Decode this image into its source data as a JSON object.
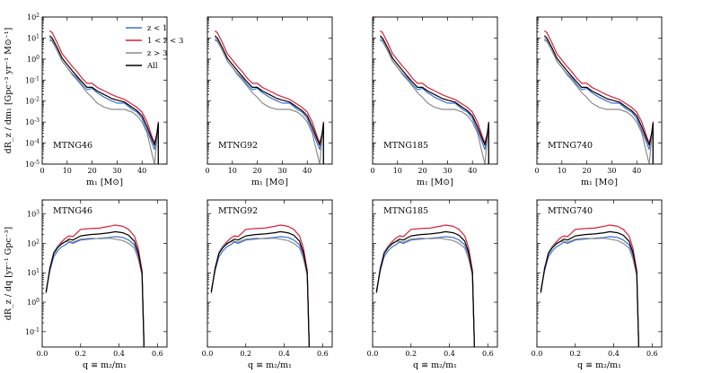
{
  "chart_data": [
    {
      "row": "top",
      "type": "line",
      "yscale": "log",
      "xlim": [
        0,
        50
      ],
      "ylim": [
        1e-05,
        100
      ],
      "xticks": [
        0,
        10,
        20,
        30,
        40
      ],
      "ytick_exponents": [
        -5,
        -4,
        -3,
        -2,
        -1,
        0,
        1,
        2
      ],
      "xlabel": "m₁ [M⊙]",
      "ylabel": "dR_z / dm₁ [Gpc⁻³ yr⁻¹ M⊙⁻¹]",
      "panels": [
        "MTNG46",
        "MTNG92",
        "MTNG185",
        "MTNG740"
      ],
      "legend": [
        "z < 1",
        "1 < z < 3",
        "z > 3",
        "All"
      ],
      "series": [
        {
          "name": "z < 1",
          "color": "#3b6fd6",
          "x": [
            3,
            4,
            6,
            8,
            10,
            12,
            14,
            16,
            18,
            20,
            22,
            25,
            28,
            30,
            33,
            36,
            38,
            40,
            42,
            44,
            45,
            46,
            46.5
          ],
          "y": [
            8,
            7,
            2.5,
            0.8,
            0.4,
            0.2,
            0.12,
            0.06,
            0.035,
            0.04,
            0.025,
            0.015,
            0.01,
            0.008,
            0.008,
            0.004,
            0.003,
            0.0015,
            0.0004,
            0.0001,
            5e-05,
            0.0003,
            0.0008
          ]
        },
        {
          "name": "1 < z < 3",
          "color": "#d8203a",
          "x": [
            3,
            4,
            6,
            8,
            10,
            12,
            14,
            16,
            18,
            20,
            22,
            25,
            28,
            30,
            33,
            36,
            38,
            40,
            42,
            44,
            45,
            46,
            46.5
          ],
          "y": [
            22,
            18,
            6,
            1.8,
            0.9,
            0.45,
            0.25,
            0.12,
            0.07,
            0.07,
            0.045,
            0.03,
            0.02,
            0.016,
            0.012,
            0.007,
            0.005,
            0.003,
            0.001,
            0.0002,
            0.0001,
            0.0003,
            0.001
          ]
        },
        {
          "name": "z > 3",
          "color": "#8c8c8c",
          "x": [
            3,
            4,
            6,
            8,
            10,
            12,
            14,
            16,
            18,
            20,
            22,
            25,
            28,
            30,
            33,
            36,
            38,
            40,
            42,
            44,
            45,
            46,
            46.5
          ],
          "y": [
            10,
            8,
            2.5,
            0.8,
            0.4,
            0.18,
            0.1,
            0.05,
            0.025,
            0.015,
            0.008,
            0.005,
            0.004,
            0.004,
            0.004,
            0.003,
            0.002,
            0.001,
            0.0003,
            3e-05,
            1e-05,
            0.0002,
            0.0005
          ]
        },
        {
          "name": "All",
          "color": "#000000",
          "x": [
            3,
            4,
            6,
            8,
            10,
            12,
            14,
            16,
            18,
            20,
            22,
            25,
            28,
            30,
            33,
            36,
            38,
            40,
            42,
            44,
            45,
            46,
            46.5
          ],
          "y": [
            13,
            10,
            3.5,
            1.1,
            0.55,
            0.28,
            0.15,
            0.08,
            0.045,
            0.045,
            0.03,
            0.02,
            0.013,
            0.011,
            0.009,
            0.005,
            0.0035,
            0.002,
            0.0006,
            0.00015,
            8e-05,
            0.0003,
            0.0009
          ]
        }
      ]
    },
    {
      "row": "bottom",
      "type": "line",
      "yscale": "log",
      "xlim": [
        0,
        0.65
      ],
      "ylim": [
        0.03,
        3000
      ],
      "xticks": [
        0.0,
        0.2,
        0.4,
        0.6
      ],
      "xtick_labels": [
        "0.0",
        "0.2",
        "0.4",
        "0.6"
      ],
      "ytick_exponents": [
        -1,
        0,
        1,
        2,
        3
      ],
      "xlabel": "q ≡ m₂/m₁",
      "ylabel": "dR_z / dq [yr⁻¹ Gpc⁻³]",
      "panels": [
        "MTNG46",
        "MTNG92",
        "MTNG185",
        "MTNG740"
      ],
      "series": [
        {
          "name": "z < 1",
          "color": "#3b6fd6",
          "x": [
            0.02,
            0.04,
            0.06,
            0.08,
            0.1,
            0.12,
            0.14,
            0.16,
            0.2,
            0.25,
            0.3,
            0.35,
            0.38,
            0.42,
            0.45,
            0.48,
            0.5,
            0.52,
            0.53
          ],
          "y": [
            2.5,
            12,
            35,
            55,
            75,
            90,
            110,
            100,
            130,
            140,
            150,
            160,
            170,
            160,
            130,
            90,
            40,
            10,
            0.04
          ]
        },
        {
          "name": "1 < z < 3",
          "color": "#d8203a",
          "x": [
            0.02,
            0.04,
            0.06,
            0.08,
            0.1,
            0.12,
            0.14,
            0.16,
            0.2,
            0.25,
            0.3,
            0.35,
            0.38,
            0.42,
            0.45,
            0.48,
            0.5,
            0.52,
            0.53
          ],
          "y": [
            2,
            15,
            45,
            80,
            110,
            150,
            180,
            170,
            300,
            320,
            330,
            380,
            420,
            380,
            300,
            180,
            70,
            12,
            0.04
          ]
        },
        {
          "name": "z > 3",
          "color": "#8c8c8c",
          "x": [
            0.02,
            0.04,
            0.06,
            0.08,
            0.1,
            0.12,
            0.14,
            0.16,
            0.2,
            0.25,
            0.3,
            0.35,
            0.38,
            0.42,
            0.45,
            0.48,
            0.5,
            0.52,
            0.53
          ],
          "y": [
            2,
            14,
            50,
            80,
            100,
            115,
            120,
            110,
            140,
            150,
            145,
            150,
            140,
            125,
            100,
            70,
            30,
            8,
            0.04
          ]
        },
        {
          "name": "All",
          "color": "#000000",
          "x": [
            0.02,
            0.04,
            0.06,
            0.08,
            0.1,
            0.12,
            0.14,
            0.16,
            0.2,
            0.25,
            0.3,
            0.35,
            0.38,
            0.42,
            0.45,
            0.48,
            0.5,
            0.52,
            0.53
          ],
          "y": [
            2.2,
            14,
            45,
            70,
            95,
            115,
            140,
            130,
            180,
            200,
            210,
            230,
            250,
            230,
            190,
            120,
            50,
            10,
            0.04
          ]
        }
      ]
    }
  ]
}
